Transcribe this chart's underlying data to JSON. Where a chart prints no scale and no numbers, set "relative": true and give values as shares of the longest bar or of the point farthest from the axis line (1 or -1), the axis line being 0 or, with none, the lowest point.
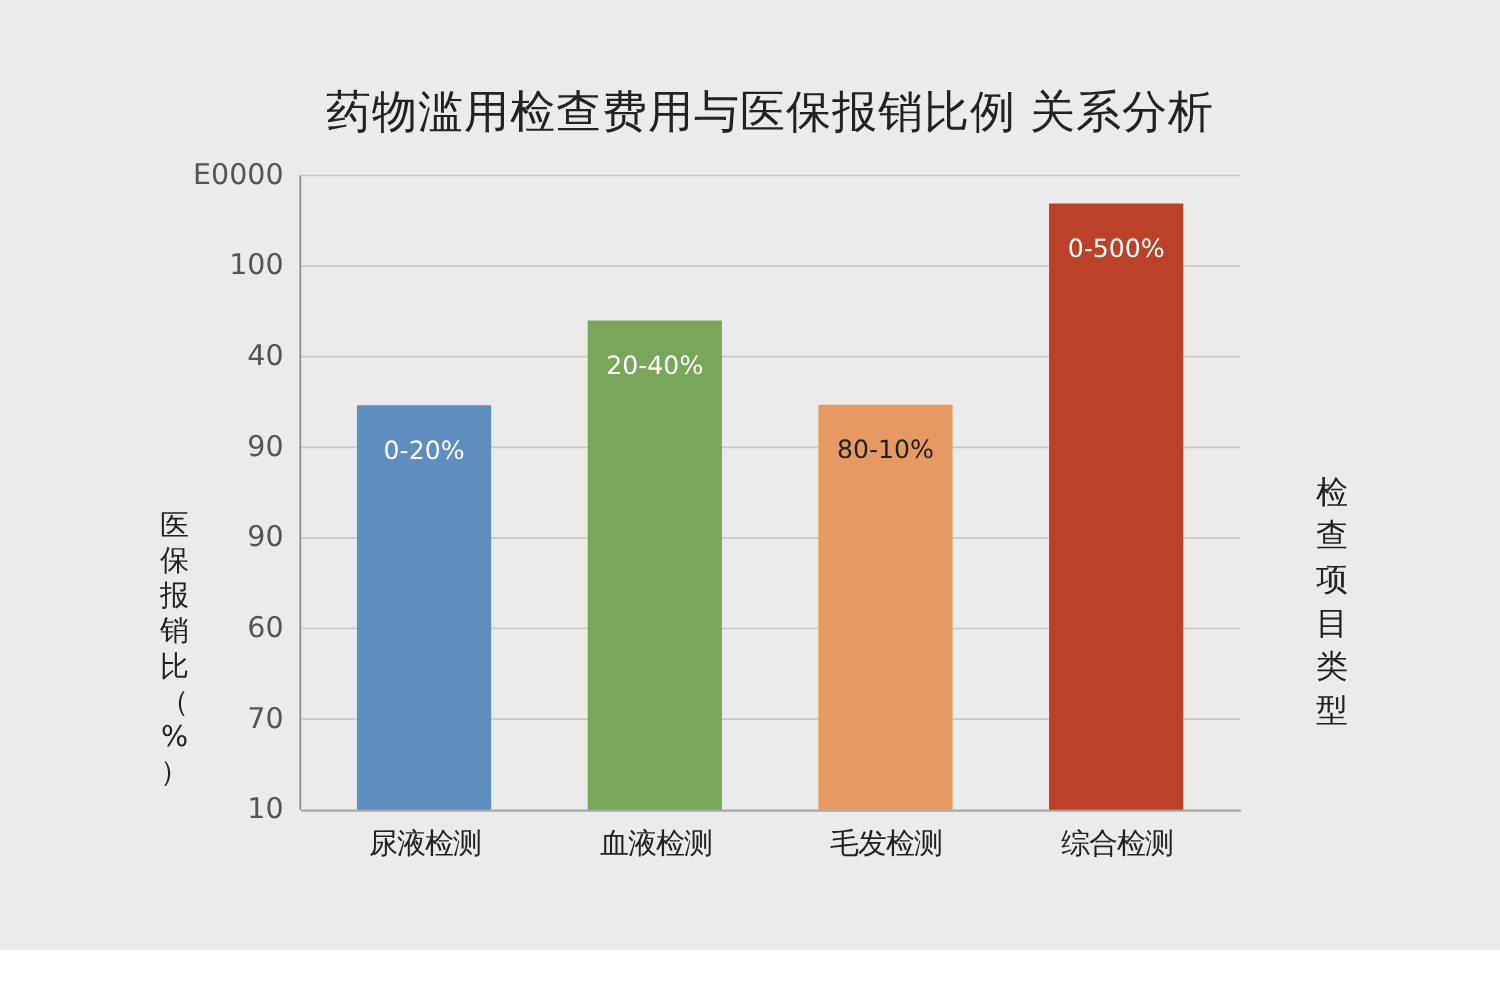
{
  "chart_data": {
    "type": "bar",
    "title": "药物滥用检查费用与医保报销比例 关系分析",
    "categories": [
      "尿液检测",
      "血液检测",
      "毛发检测",
      "综合检测"
    ],
    "values": [
      0.667,
      0.807,
      0.668,
      1
    ],
    "relative": true,
    "colors": [
      "#5e8dbf",
      "#78a65a",
      "#e69a62",
      "#bb4228"
    ],
    "ylabel": "医保报销比（%）",
    "y2label": "检查项目类型",
    "annotations": [
      {
        "text": "0-20%",
        "x": "尿液检测",
        "y": 0.667
      },
      {
        "text": "20-40%",
        "x": "血液检测",
        "y": 0.807
      },
      {
        "text": "80-10%",
        "x": "毛发检测",
        "y": 0.668
      },
      {
        "text": "0-500%",
        "x": "综合检测",
        "y": 1
      },
      "10",
      "70",
      "60",
      "90",
      "90",
      "40",
      "100",
      "E0000"
    ],
    "grid": "y"
  }
}
